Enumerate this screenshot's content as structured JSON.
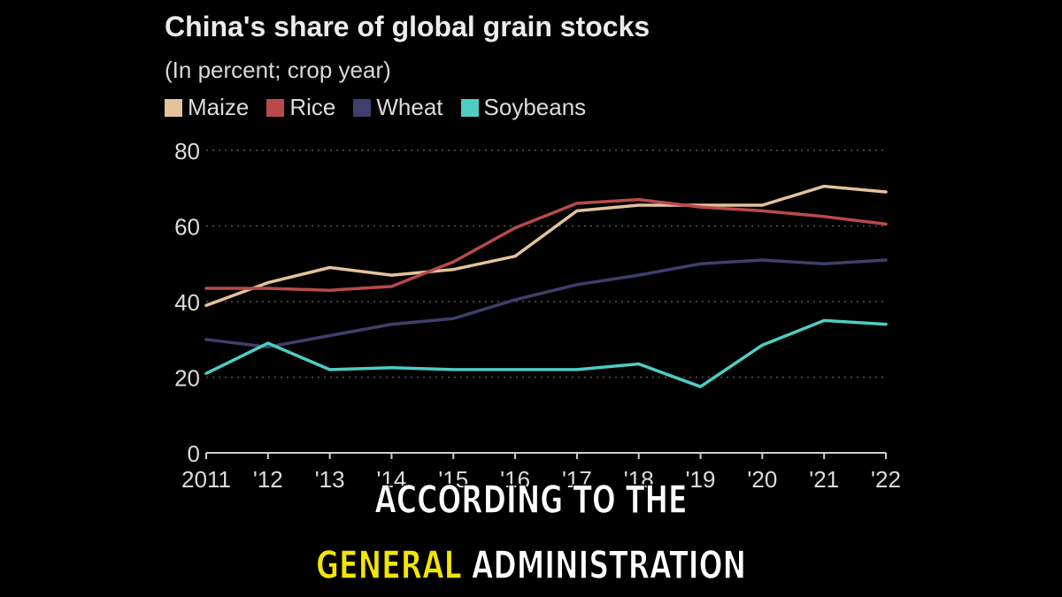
{
  "chart_data": {
    "type": "line",
    "title": "China's share of global grain stocks",
    "subtitle": "(In percent; crop year)",
    "x": [
      "2011",
      "'12",
      "'13",
      "'14",
      "'15",
      "'16",
      "'17",
      "'18",
      "'19",
      "'20",
      "'21",
      "'22"
    ],
    "ylim": [
      0,
      80
    ],
    "yticks": [
      0,
      20,
      40,
      60,
      80
    ],
    "grid": "horizontal dotted",
    "legend_position": "top-left",
    "series": [
      {
        "name": "Maize",
        "color": "#e3c39a",
        "values": [
          39,
          45,
          49,
          47,
          48.5,
          52,
          64,
          65.5,
          65.5,
          65.5,
          70.5,
          69
        ]
      },
      {
        "name": "Rice",
        "color": "#b84a4c",
        "values": [
          43.5,
          43.5,
          43,
          44,
          50.5,
          59.5,
          66,
          67,
          65,
          64,
          62.5,
          60.5
        ]
      },
      {
        "name": "Wheat",
        "color": "#3f3f6b",
        "values": [
          30,
          28,
          31,
          34,
          35.5,
          40.5,
          44.5,
          47,
          50,
          51,
          50,
          51
        ]
      },
      {
        "name": "Soybeans",
        "color": "#4ecdc4",
        "values": [
          21,
          29,
          22,
          22.5,
          22,
          22,
          22,
          23.5,
          17.5,
          28.5,
          35,
          34
        ]
      }
    ]
  },
  "caption": {
    "line1": "ACCORDING TO THE",
    "line2_highlight": "GENERAL",
    "line2_rest": " ADMINISTRATION"
  }
}
